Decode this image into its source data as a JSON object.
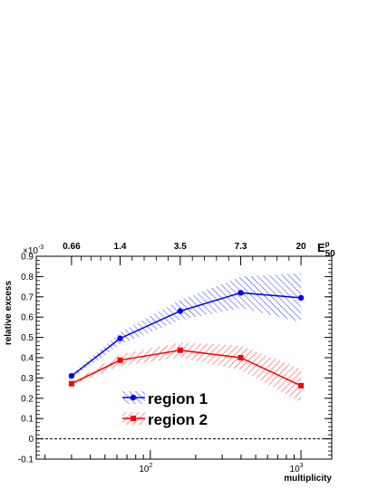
{
  "chart_data": {
    "type": "line",
    "title": "",
    "xlabel": "multiplicity",
    "ylabel": "relative excess",
    "y_exponent_label": "×10",
    "y_exponent_power": "-3",
    "ylim": [
      -0.1,
      0.9
    ],
    "yticks": [
      -0.1,
      0,
      0.1,
      0.2,
      0.3,
      0.4,
      0.5,
      0.6,
      0.7,
      0.8,
      0.9
    ],
    "ytick_labels": [
      "-0.1",
      "0",
      "0.1",
      "0.2",
      "0.3",
      "0.4",
      "0.5",
      "0.6",
      "0.7",
      "0.8",
      "0.9"
    ],
    "x_scale": "log",
    "xlim": [
      17.5,
      1600
    ],
    "x_major_ticks": [
      100,
      1000
    ],
    "x_major_labels": [
      {
        "base": "10",
        "exp": "2"
      },
      {
        "base": "10",
        "exp": "3"
      }
    ],
    "top_axis": {
      "label_base": "E",
      "label_super": "p",
      "label_sub": "50",
      "tick_labels": [
        "0.66",
        "1.4",
        "3.5",
        "7.3",
        "20"
      ]
    },
    "x": [
      30,
      63,
      158,
      398,
      1000
    ],
    "series": [
      {
        "name": "region 1",
        "color": "#0000ff",
        "marker": "circle",
        "values": [
          0.31,
          0.495,
          0.63,
          0.72,
          0.695
        ],
        "band_upper": [
          0.32,
          0.525,
          0.685,
          0.8,
          0.815
        ],
        "band_lower": [
          0.3,
          0.465,
          0.585,
          0.645,
          0.575
        ]
      },
      {
        "name": "region 2",
        "color": "#ff0000",
        "marker": "square",
        "values": [
          0.272,
          0.388,
          0.437,
          0.4,
          0.262
        ],
        "band_upper": [
          0.28,
          0.415,
          0.475,
          0.46,
          0.345
        ],
        "band_lower": [
          0.265,
          0.36,
          0.4,
          0.34,
          0.18
        ]
      }
    ],
    "reference_line": {
      "y": 0,
      "style": "dashed"
    },
    "legend_position": "lower-center"
  }
}
